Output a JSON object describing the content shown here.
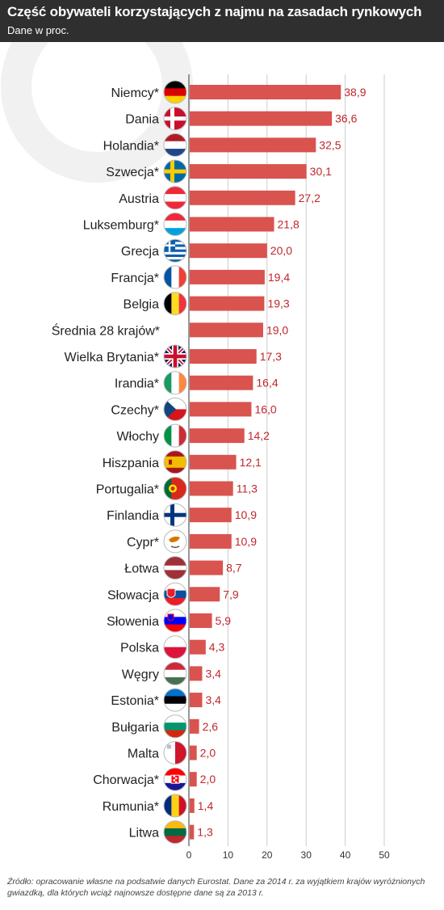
{
  "header": {
    "title": "Część obywateli korzystających z najmu na zasadach rynkowych",
    "subtitle": "Dane w proc."
  },
  "source": "Źródło: opracowanie własne na podsatwie danych Eurostat. Dane za 2014 r. za wyjątkiem krajów wyróżnionych gwiazdką, dla których wciąż najnowsze dostępne dane są za 2013 r.",
  "colors": {
    "bar": "#d9534f",
    "value_text": "#c0272d",
    "header_bg": "#2f2f2f",
    "grid": "#cccccc"
  },
  "chart_data": {
    "type": "bar",
    "orientation": "horizontal",
    "title": "Część obywateli korzystających z najmu na zasadach rynkowych",
    "subtitle": "Dane w proc.",
    "xlabel": "",
    "ylabel": "",
    "xlim": [
      0,
      50
    ],
    "x_ticks": [
      "0",
      "10",
      "20",
      "30",
      "40",
      "50"
    ],
    "grid": "vertical",
    "categories": [
      "Niemcy*",
      "Dania",
      "Holandia*",
      "Szwecja*",
      "Austria",
      "Luksemburg*",
      "Grecja",
      "Francja*",
      "Belgia",
      "Średnia 28 krajów*",
      "Wielka Brytania*",
      "Irandia*",
      "Czechy*",
      "Włochy",
      "Hiszpania",
      "Portugalia*",
      "Finlandia",
      "Cypr*",
      "Łotwa",
      "Słowacja",
      "Słowenia",
      "Polska",
      "Węgry",
      "Estonia*",
      "Bułgaria",
      "Malta",
      "Chorwacja*",
      "Rumunia*",
      "Litwa"
    ],
    "values": [
      38.9,
      36.6,
      32.5,
      30.1,
      27.2,
      21.8,
      20.0,
      19.4,
      19.3,
      19.0,
      17.3,
      16.4,
      16.0,
      14.2,
      12.1,
      11.3,
      10.9,
      10.9,
      8.7,
      7.9,
      5.9,
      4.3,
      3.4,
      3.4,
      2.6,
      2.0,
      2.0,
      1.4,
      1.3
    ],
    "value_labels": [
      "38,9",
      "36,6",
      "32,5",
      "30,1",
      "27,2",
      "21,8",
      "20,0",
      "19,4",
      "19,3",
      "19,0",
      "17,3",
      "16,4",
      "16,0",
      "14,2",
      "12,1",
      "11,3",
      "10,9",
      "10,9",
      "8,7",
      "7,9",
      "5,9",
      "4,3",
      "3,4",
      "3,4",
      "2,6",
      "2,0",
      "2,0",
      "1,4",
      "1,3"
    ],
    "flags": [
      "germany-flag-icon",
      "denmark-flag-icon",
      "netherlands-flag-icon",
      "sweden-flag-icon",
      "austria-flag-icon",
      "luxembourg-flag-icon",
      "greece-flag-icon",
      "france-flag-icon",
      "belgium-flag-icon",
      "",
      "uk-flag-icon",
      "ireland-flag-icon",
      "czech-flag-icon",
      "italy-flag-icon",
      "spain-flag-icon",
      "portugal-flag-icon",
      "finland-flag-icon",
      "cyprus-flag-icon",
      "latvia-flag-icon",
      "slovakia-flag-icon",
      "slovenia-flag-icon",
      "poland-flag-icon",
      "hungary-flag-icon",
      "estonia-flag-icon",
      "bulgaria-flag-icon",
      "malta-flag-icon",
      "croatia-flag-icon",
      "romania-flag-icon",
      "lithuania-flag-icon"
    ]
  }
}
